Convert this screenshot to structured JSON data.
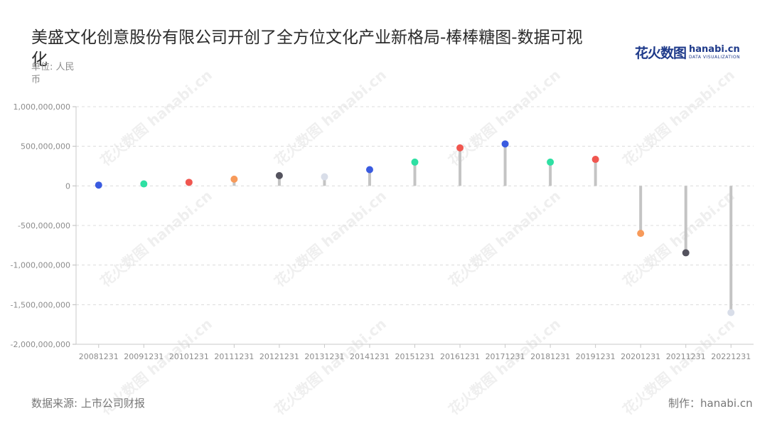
{
  "title": "美盛文化创意股份有限公司开创了全方位文化产业新格局-棒棒糖图-数据可视化",
  "unit": "单位: 人民币",
  "logo": {
    "cn": "花火数图",
    "en": "hanabi.cn",
    "sub": "DATA VISUALIZATION"
  },
  "watermark_text": "花火数图 hanabi.cn",
  "source": "数据来源: 上市公司财报",
  "credit": "制作：hanabi.cn",
  "chart_data": {
    "type": "lollipop",
    "ylim": [
      -2000000000,
      1000000000
    ],
    "yticks": [
      1000000000,
      500000000,
      0,
      -500000000,
      -1000000000,
      -1500000000,
      -2000000000
    ],
    "ytick_labels": [
      "1,000,000,000",
      "500,000,000",
      "0",
      "-500,000,000",
      "-1,000,000,000",
      "-1,500,000,000",
      "-2,000,000,000"
    ],
    "grid": "horizontal-dashed",
    "categories": [
      "20081231",
      "20091231",
      "20101231",
      "20111231",
      "20121231",
      "20131231",
      "20141231",
      "20151231",
      "20161231",
      "20171231",
      "20181231",
      "20191231",
      "20201231",
      "20211231",
      "20221231"
    ],
    "values": [
      10000000,
      25000000,
      45000000,
      85000000,
      130000000,
      115000000,
      205000000,
      300000000,
      480000000,
      530000000,
      300000000,
      335000000,
      -600000000,
      -845000000,
      -1600000000
    ],
    "colors": [
      "#3a5be0",
      "#2ee0a3",
      "#f0564f",
      "#f79a5a",
      "#54535e",
      "#d9dee9",
      "#3a5be0",
      "#2ee0a3",
      "#f0564f",
      "#3a5be0",
      "#2ee0a3",
      "#f0564f",
      "#f79a5a",
      "#54535e",
      "#d9dee9"
    ],
    "stem_color": "#c4c4c4"
  }
}
